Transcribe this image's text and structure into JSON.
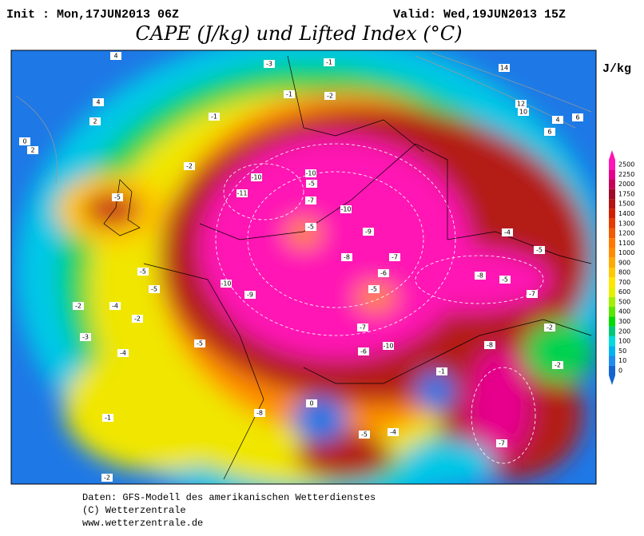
{
  "header": {
    "init": "Init : Mon,17JUN2013 06Z",
    "valid": "Valid: Wed,19JUN2013 15Z",
    "title": "CAPE (J/kg) und Lifted Index (°C)",
    "unit": "J/kg"
  },
  "colorbar": {
    "ticks": [
      2500,
      2250,
      2000,
      1750,
      1500,
      1400,
      1300,
      1200,
      1100,
      1000,
      900,
      800,
      700,
      600,
      500,
      400,
      300,
      200,
      100,
      50,
      10,
      0
    ],
    "colors": [
      "#ff14b4",
      "#e6008c",
      "#c8005a",
      "#a00a28",
      "#b41414",
      "#d21e00",
      "#e63c00",
      "#f05a00",
      "#ff7800",
      "#ff8c00",
      "#ffaa00",
      "#ffc800",
      "#ffe600",
      "#e6f000",
      "#a0f000",
      "#5ae600",
      "#00dc00",
      "#00c878",
      "#00dcdc",
      "#00b4f0",
      "#1e8cf0",
      "#1464d2"
    ]
  },
  "map": {
    "labels": [
      -1,
      -3,
      4,
      14,
      -1,
      -2,
      4,
      12,
      10,
      2,
      -1,
      4,
      6,
      6,
      0,
      2,
      -2,
      -10,
      -10,
      -5,
      -11,
      -5,
      -7,
      -10,
      -5,
      -9,
      -4,
      -5,
      -8,
      -7,
      -6,
      -8,
      -5,
      -10,
      -9,
      -5,
      -5,
      -5,
      -7,
      -2,
      -4,
      -2,
      -7,
      -10,
      -6,
      -8,
      -3,
      -4,
      -5,
      -1,
      -8,
      -2,
      -5,
      -2,
      -2,
      -7,
      -4,
      0,
      -1
    ]
  },
  "footer": [
    "Daten: GFS-Modell des amerikanischen Wetterdienstes",
    "(C) Wetterzentrale",
    "www.wetterzentrale.de"
  ]
}
